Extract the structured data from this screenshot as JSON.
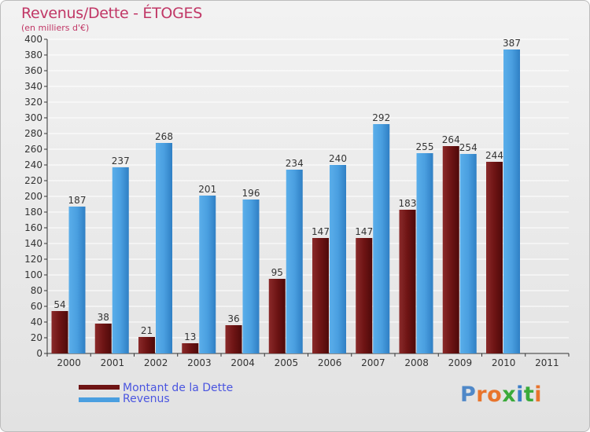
{
  "title": "Revenus/Dette - ÉTOGES",
  "subtitle": "(en milliers d'€)",
  "logo": {
    "text": "Proxiti",
    "letter_colors": [
      "#4f88c8",
      "#e8742c",
      "#e8742c",
      "#3aaa3a",
      "#3a7dc8",
      "#3aaa3a",
      "#e8742c"
    ]
  },
  "colors": {
    "dette": "#6e1414",
    "revenus": "#4a9fe0",
    "grid": "#ffffff",
    "axis": "#333333",
    "label": "#333333"
  },
  "legend": [
    {
      "label": "Montant de la Dette",
      "color": "#6e1414"
    },
    {
      "label": "Revenus",
      "color": "#4a9fe0"
    }
  ],
  "chart_data": {
    "type": "bar",
    "title": "Revenus/Dette - ÉTOGES",
    "subtitle": "(en milliers d'€)",
    "categories": [
      "2000",
      "2001",
      "2002",
      "2003",
      "2004",
      "2005",
      "2006",
      "2007",
      "2008",
      "2009",
      "2010",
      "2011"
    ],
    "series": [
      {
        "name": "Montant de la Dette",
        "values": [
          54,
          38,
          21,
          13,
          36,
          95,
          147,
          147,
          183,
          264,
          244,
          null
        ]
      },
      {
        "name": "Revenus",
        "values": [
          187,
          237,
          268,
          201,
          196,
          234,
          240,
          292,
          255,
          254,
          387,
          null
        ]
      }
    ],
    "ylim": [
      0,
      400
    ],
    "yticks": [
      0,
      20,
      40,
      60,
      80,
      100,
      120,
      140,
      160,
      180,
      200,
      220,
      240,
      260,
      280,
      300,
      320,
      340,
      360,
      380,
      400
    ],
    "grid": true,
    "legend_position": "bottom-left"
  }
}
